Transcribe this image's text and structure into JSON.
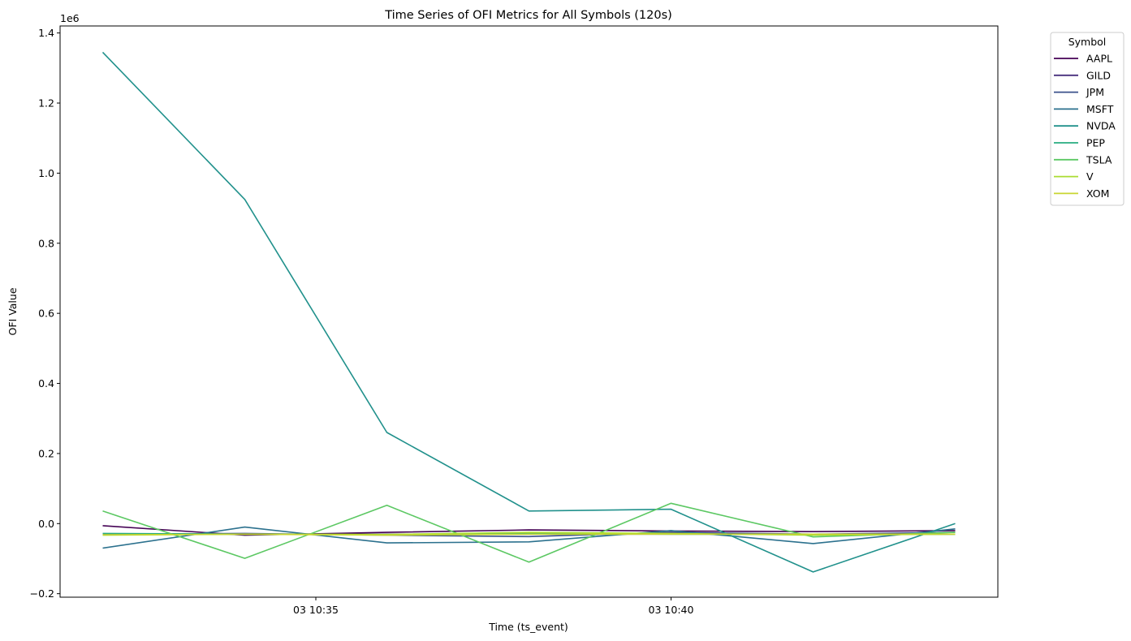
{
  "chart_data": {
    "type": "line",
    "title": "Time Series of OFI Metrics for All Symbols (120s)",
    "xlabel": "Time (ts_event)",
    "ylabel": "OFI Value",
    "y_offset_label": "1e6",
    "x_unit": "minutes after 10:32",
    "x_ticks": [
      {
        "x": 3,
        "label": "03 10:35"
      },
      {
        "x": 8,
        "label": "03 10:40"
      }
    ],
    "y_ticks": [
      {
        "y": -0.2,
        "label": "−0.2"
      },
      {
        "y": 0.0,
        "label": "0.0"
      },
      {
        "y": 0.2,
        "label": "0.2"
      },
      {
        "y": 0.4,
        "label": "0.4"
      },
      {
        "y": 0.6,
        "label": "0.6"
      },
      {
        "y": 0.8,
        "label": "0.8"
      },
      {
        "y": 1.0,
        "label": "1.0"
      },
      {
        "y": 1.2,
        "label": "1.2"
      },
      {
        "y": 1.4,
        "label": "1.4"
      }
    ],
    "xlim": [
      -0.6,
      12.6
    ],
    "ylim": [
      -0.21,
      1.42
    ],
    "x": [
      0,
      2,
      4,
      6,
      8,
      10,
      12
    ],
    "grid": false,
    "legend": {
      "title": "Symbol",
      "placement": "outside top-right"
    },
    "series": [
      {
        "name": "AAPL",
        "color": "#440154",
        "values": [
          -0.006,
          -0.033,
          -0.025,
          -0.018,
          -0.021,
          -0.023,
          -0.02
        ]
      },
      {
        "name": "GILD",
        "color": "#472f7d",
        "values": [
          -0.03,
          -0.03,
          -0.03,
          -0.03,
          -0.03,
          -0.03,
          -0.03
        ]
      },
      {
        "name": "JPM",
        "color": "#3b518b",
        "values": [
          -0.03,
          -0.028,
          -0.033,
          -0.037,
          -0.025,
          -0.03,
          -0.025
        ]
      },
      {
        "name": "MSFT",
        "color": "#2c718e",
        "values": [
          -0.07,
          -0.01,
          -0.055,
          -0.052,
          -0.02,
          -0.057,
          -0.015
        ]
      },
      {
        "name": "NVDA",
        "color": "#21918c",
        "values": [
          1.345,
          0.925,
          0.26,
          0.036,
          0.041,
          -0.138,
          0.0
        ]
      },
      {
        "name": "PEP",
        "color": "#27ad81",
        "values": [
          -0.028,
          -0.03,
          -0.032,
          -0.028,
          -0.03,
          -0.03,
          -0.03
        ]
      },
      {
        "name": "TSLA",
        "color": "#5cc863",
        "values": [
          0.036,
          -0.099,
          0.052,
          -0.11,
          0.058,
          -0.038,
          -0.025
        ]
      },
      {
        "name": "V",
        "color": "#aadc32",
        "values": [
          -0.033,
          -0.03,
          -0.031,
          -0.025,
          -0.028,
          -0.033,
          -0.03
        ]
      },
      {
        "name": "XOM",
        "color": "#c8d631",
        "values": [
          -0.032,
          -0.03,
          -0.033,
          -0.03,
          -0.03,
          -0.03,
          -0.03
        ]
      }
    ]
  }
}
